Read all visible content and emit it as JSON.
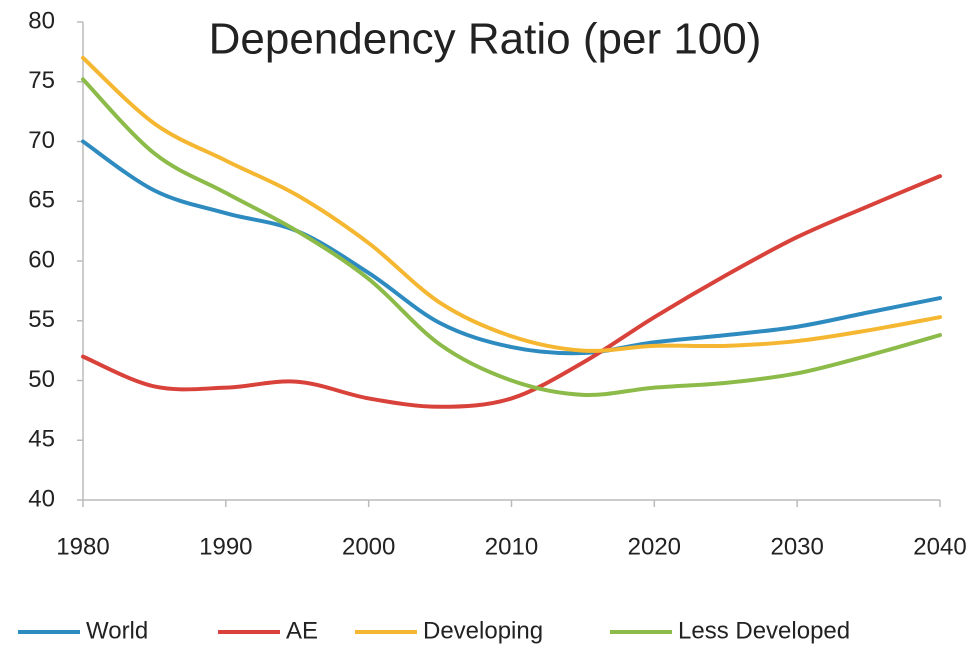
{
  "chart_data": {
    "type": "line",
    "title": "Dependency Ratio (per 100)",
    "x": [
      1980,
      1985,
      1990,
      1995,
      2000,
      2005,
      2010,
      2015,
      2020,
      2025,
      2030,
      2035,
      2040
    ],
    "series": [
      {
        "name": "World",
        "color": "#2e8bc0",
        "values": [
          70,
          65.9,
          64,
          62.5,
          59,
          54.8,
          52.8,
          52.3,
          53.2,
          53.8,
          54.5,
          55.7,
          56.9
        ]
      },
      {
        "name": "AE",
        "color": "#d9423a",
        "values": [
          52,
          49.5,
          49.4,
          49.9,
          48.5,
          47.8,
          48.5,
          51.5,
          55.3,
          58.8,
          62,
          64.6,
          67.1
        ]
      },
      {
        "name": "Developing",
        "color": "#f5b731",
        "values": [
          77,
          71.5,
          68.4,
          65.5,
          61.5,
          56.5,
          53.7,
          52.5,
          52.9,
          52.9,
          53.3,
          54.2,
          55.3
        ]
      },
      {
        "name": "Less Developed",
        "color": "#8dbb4a",
        "values": [
          75.2,
          69,
          65.7,
          62.5,
          58.5,
          53,
          50,
          48.8,
          49.4,
          49.8,
          50.6,
          52.1,
          53.8
        ]
      }
    ],
    "xlim": [
      1980,
      2040
    ],
    "xticks": [
      1980,
      1990,
      2000,
      2010,
      2020,
      2030,
      2040
    ],
    "ylim": [
      40,
      80
    ],
    "yticks": [
      40,
      45,
      50,
      55,
      60,
      65,
      70,
      75,
      80
    ],
    "grid": false,
    "legend": "bottom"
  }
}
